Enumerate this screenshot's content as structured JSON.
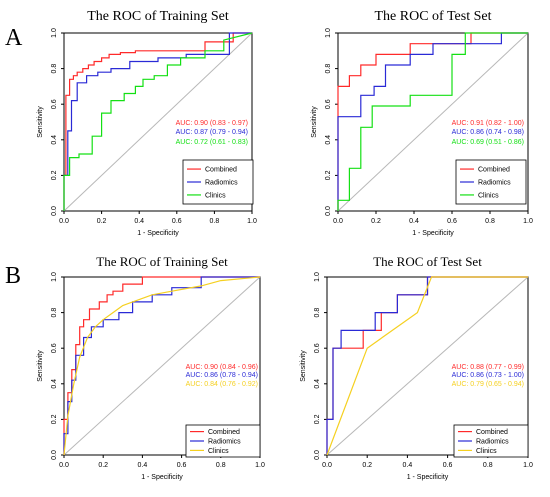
{
  "panel_labels": [
    "A",
    "B"
  ],
  "chart_data": [
    {
      "type": "line",
      "panel": "A",
      "title": "The ROC of Training Set",
      "xlabel": "1 - Specificity",
      "ylabel": "Sensitivity",
      "xlim": [
        0,
        1
      ],
      "ylim": [
        0,
        1
      ],
      "xticks": [
        "0.0",
        "0.2",
        "0.4",
        "0.6",
        "0.8",
        "1.0"
      ],
      "yticks": [
        "0.0",
        "0.2",
        "0.4",
        "0.6",
        "0.8",
        "1.0"
      ],
      "grid": false,
      "legend": "bottom-right",
      "reference_line": "diagonal",
      "series": [
        {
          "name": "Combined",
          "color": "#ff2a2a",
          "auc_label": "AUC: 0.90 (0.83 - 0.97)",
          "x": [
            0,
            0,
            0.01,
            0.01,
            0.03,
            0.03,
            0.05,
            0.05,
            0.07,
            0.07,
            0.1,
            0.1,
            0.13,
            0.13,
            0.16,
            0.16,
            0.2,
            0.2,
            0.24,
            0.24,
            0.3,
            0.3,
            0.38,
            0.38,
            0.5,
            0.5,
            0.75,
            0.75,
            0.9,
            0.9,
            1
          ],
          "y": [
            0,
            0.2,
            0.2,
            0.65,
            0.65,
            0.74,
            0.74,
            0.76,
            0.76,
            0.78,
            0.78,
            0.8,
            0.8,
            0.82,
            0.82,
            0.84,
            0.84,
            0.86,
            0.86,
            0.88,
            0.88,
            0.89,
            0.89,
            0.9,
            0.9,
            0.9,
            0.9,
            0.95,
            0.95,
            1,
            1
          ]
        },
        {
          "name": "Radiomics",
          "color": "#2a2ad6",
          "auc_label": "AUC: 0.87 (0.79 - 0.94)",
          "x": [
            0,
            0,
            0.02,
            0.02,
            0.04,
            0.04,
            0.07,
            0.07,
            0.12,
            0.12,
            0.18,
            0.18,
            0.25,
            0.25,
            0.35,
            0.35,
            0.5,
            0.5,
            0.65,
            0.65,
            0.88,
            0.88,
            1
          ],
          "y": [
            0,
            0.2,
            0.2,
            0.45,
            0.45,
            0.62,
            0.62,
            0.72,
            0.72,
            0.76,
            0.76,
            0.78,
            0.78,
            0.8,
            0.8,
            0.84,
            0.84,
            0.86,
            0.86,
            0.88,
            0.88,
            1,
            1
          ]
        },
        {
          "name": "Clinics",
          "color": "#14e014",
          "auc_label": "AUC: 0.72 (0.61 - 0.83)",
          "x": [
            0,
            0,
            0.03,
            0.03,
            0.08,
            0.08,
            0.15,
            0.15,
            0.2,
            0.2,
            0.25,
            0.25,
            0.32,
            0.32,
            0.38,
            0.38,
            0.42,
            0.42,
            0.48,
            0.48,
            0.55,
            0.55,
            0.62,
            0.62,
            0.75,
            0.75,
            0.85,
            0.85,
            1
          ],
          "y": [
            0,
            0.2,
            0.2,
            0.3,
            0.3,
            0.32,
            0.32,
            0.42,
            0.42,
            0.55,
            0.55,
            0.62,
            0.62,
            0.66,
            0.66,
            0.7,
            0.7,
            0.74,
            0.74,
            0.76,
            0.76,
            0.82,
            0.82,
            0.86,
            0.86,
            0.9,
            0.9,
            0.96,
            1
          ]
        }
      ]
    },
    {
      "type": "line",
      "panel": "A",
      "title": "The ROC of Test Set",
      "xlabel": "1 - Specificity",
      "ylabel": "Sensitivity",
      "xlim": [
        0,
        1
      ],
      "ylim": [
        0,
        1
      ],
      "xticks": [
        "0.0",
        "0.2",
        "0.4",
        "0.6",
        "0.8",
        "1.0"
      ],
      "yticks": [
        "0.0",
        "0.2",
        "0.4",
        "0.6",
        "0.8",
        "1.0"
      ],
      "grid": false,
      "legend": "bottom-right",
      "reference_line": "diagonal",
      "series": [
        {
          "name": "Combined",
          "color": "#ff2a2a",
          "auc_label": "AUC: 0.91 (0.82 - 1.00)",
          "x": [
            0,
            0,
            0.06,
            0.06,
            0.12,
            0.12,
            0.2,
            0.2,
            0.38,
            0.38,
            0.7,
            0.7,
            1
          ],
          "y": [
            0,
            0.7,
            0.7,
            0.76,
            0.76,
            0.82,
            0.82,
            0.88,
            0.88,
            0.94,
            0.94,
            1,
            1
          ]
        },
        {
          "name": "Radiomics",
          "color": "#2a2ad6",
          "auc_label": "AUC: 0.86 (0.74 - 0.98)",
          "x": [
            0,
            0,
            0.12,
            0.12,
            0.19,
            0.19,
            0.25,
            0.25,
            0.38,
            0.38,
            0.5,
            0.5,
            0.86,
            0.86,
            1
          ],
          "y": [
            0,
            0.53,
            0.53,
            0.65,
            0.65,
            0.7,
            0.7,
            0.82,
            0.82,
            0.88,
            0.88,
            0.94,
            0.94,
            1,
            1
          ]
        },
        {
          "name": "Clinics",
          "color": "#14e014",
          "auc_label": "AUC: 0.69 (0.51 - 0.86)",
          "x": [
            0,
            0,
            0.06,
            0.06,
            0.12,
            0.12,
            0.18,
            0.18,
            0.38,
            0.38,
            0.6,
            0.6,
            0.67,
            0.67,
            0.75,
            0.75,
            1
          ],
          "y": [
            0,
            0.06,
            0.06,
            0.24,
            0.24,
            0.47,
            0.47,
            0.59,
            0.59,
            0.65,
            0.65,
            0.88,
            0.88,
            1,
            1,
            1,
            1
          ]
        }
      ]
    },
    {
      "type": "line",
      "panel": "B",
      "title": "The ROC of Training Set",
      "xlabel": "1 - Specificity",
      "ylabel": "Sensitivity",
      "xlim": [
        0,
        1
      ],
      "ylim": [
        0,
        1
      ],
      "xticks": [
        "0.0",
        "0.2",
        "0.4",
        "0.6",
        "0.8",
        "1.0"
      ],
      "yticks": [
        "0.0",
        "0.2",
        "0.4",
        "0.6",
        "0.8",
        "1.0"
      ],
      "grid": false,
      "legend": "bottom-right",
      "reference_line": "diagonal",
      "series": [
        {
          "name": "Combined",
          "color": "#ff2a2a",
          "auc_label": "AUC: 0.90 (0.84 - 0.96)",
          "x": [
            0,
            0,
            0.02,
            0.02,
            0.04,
            0.04,
            0.06,
            0.06,
            0.08,
            0.08,
            0.1,
            0.1,
            0.13,
            0.13,
            0.18,
            0.18,
            0.22,
            0.22,
            0.25,
            0.25,
            0.3,
            0.3,
            0.4,
            0.4,
            1
          ],
          "y": [
            0,
            0.2,
            0.2,
            0.35,
            0.35,
            0.48,
            0.48,
            0.62,
            0.62,
            0.72,
            0.72,
            0.76,
            0.76,
            0.82,
            0.82,
            0.86,
            0.86,
            0.9,
            0.9,
            0.92,
            0.92,
            0.96,
            0.96,
            1,
            1
          ]
        },
        {
          "name": "Radiomics",
          "color": "#2a2ad6",
          "auc_label": "AUC: 0.86 (0.78 - 0.94)",
          "x": [
            0,
            0,
            0.02,
            0.02,
            0.04,
            0.04,
            0.06,
            0.06,
            0.1,
            0.1,
            0.14,
            0.14,
            0.2,
            0.2,
            0.28,
            0.28,
            0.35,
            0.35,
            0.45,
            0.45,
            0.55,
            0.55,
            0.7,
            0.7,
            1
          ],
          "y": [
            0,
            0.12,
            0.12,
            0.3,
            0.3,
            0.42,
            0.42,
            0.56,
            0.56,
            0.66,
            0.66,
            0.72,
            0.72,
            0.76,
            0.76,
            0.8,
            0.8,
            0.86,
            0.86,
            0.9,
            0.9,
            0.94,
            0.94,
            1,
            1
          ]
        },
        {
          "name": "Clinics",
          "color": "#f5d020",
          "auc_label": "AUC: 0.84 (0.76 - 0.92)",
          "x": [
            0,
            0.02,
            0.05,
            0.08,
            0.12,
            0.16,
            0.2,
            0.25,
            0.3,
            0.35,
            0.45,
            0.55,
            0.7,
            0.8,
            1
          ],
          "y": [
            0,
            0.22,
            0.4,
            0.55,
            0.66,
            0.72,
            0.76,
            0.8,
            0.84,
            0.86,
            0.9,
            0.92,
            0.95,
            0.98,
            1
          ]
        }
      ]
    },
    {
      "type": "line",
      "panel": "B",
      "title": "The ROC of Test Set",
      "xlabel": "1 - Specificity",
      "ylabel": "Sensitivity",
      "xlim": [
        0,
        1
      ],
      "ylim": [
        0,
        1
      ],
      "xticks": [
        "0.0",
        "0.2",
        "0.4",
        "0.6",
        "0.8",
        "1.0"
      ],
      "yticks": [
        "0.0",
        "0.2",
        "0.4",
        "0.6",
        "0.8",
        "1.0"
      ],
      "grid": false,
      "legend": "bottom-right",
      "reference_line": "diagonal",
      "series": [
        {
          "name": "Combined",
          "color": "#ff2a2a",
          "auc_label": "AUC: 0.88 (0.77 - 0.99)",
          "x": [
            0,
            0,
            0.03,
            0.03,
            0.06,
            0.06,
            0.18,
            0.18,
            0.27,
            0.27,
            0.35,
            0.35,
            0.45,
            0.45,
            0.5,
            0.5,
            1
          ],
          "y": [
            0,
            0.2,
            0.2,
            0.6,
            0.6,
            0.6,
            0.6,
            0.7,
            0.7,
            0.8,
            0.8,
            0.9,
            0.9,
            0.9,
            0.9,
            1,
            1
          ]
        },
        {
          "name": "Radiomics",
          "color": "#2a2ad6",
          "auc_label": "AUC: 0.86 (0.73 - 1.00)",
          "x": [
            0,
            0,
            0.03,
            0.03,
            0.07,
            0.07,
            0.18,
            0.18,
            0.24,
            0.24,
            0.35,
            0.35,
            0.45,
            0.45,
            0.5,
            0.5,
            1
          ],
          "y": [
            0,
            0.2,
            0.2,
            0.6,
            0.6,
            0.7,
            0.7,
            0.7,
            0.7,
            0.8,
            0.8,
            0.9,
            0.9,
            0.9,
            0.9,
            1,
            1
          ]
        },
        {
          "name": "Clinics",
          "color": "#f5d020",
          "auc_label": "AUC: 0.79 (0.65 - 0.94)",
          "x": [
            0,
            0.2,
            0.45,
            0.52,
            1
          ],
          "y": [
            0,
            0.6,
            0.8,
            1,
            1
          ]
        }
      ]
    }
  ]
}
